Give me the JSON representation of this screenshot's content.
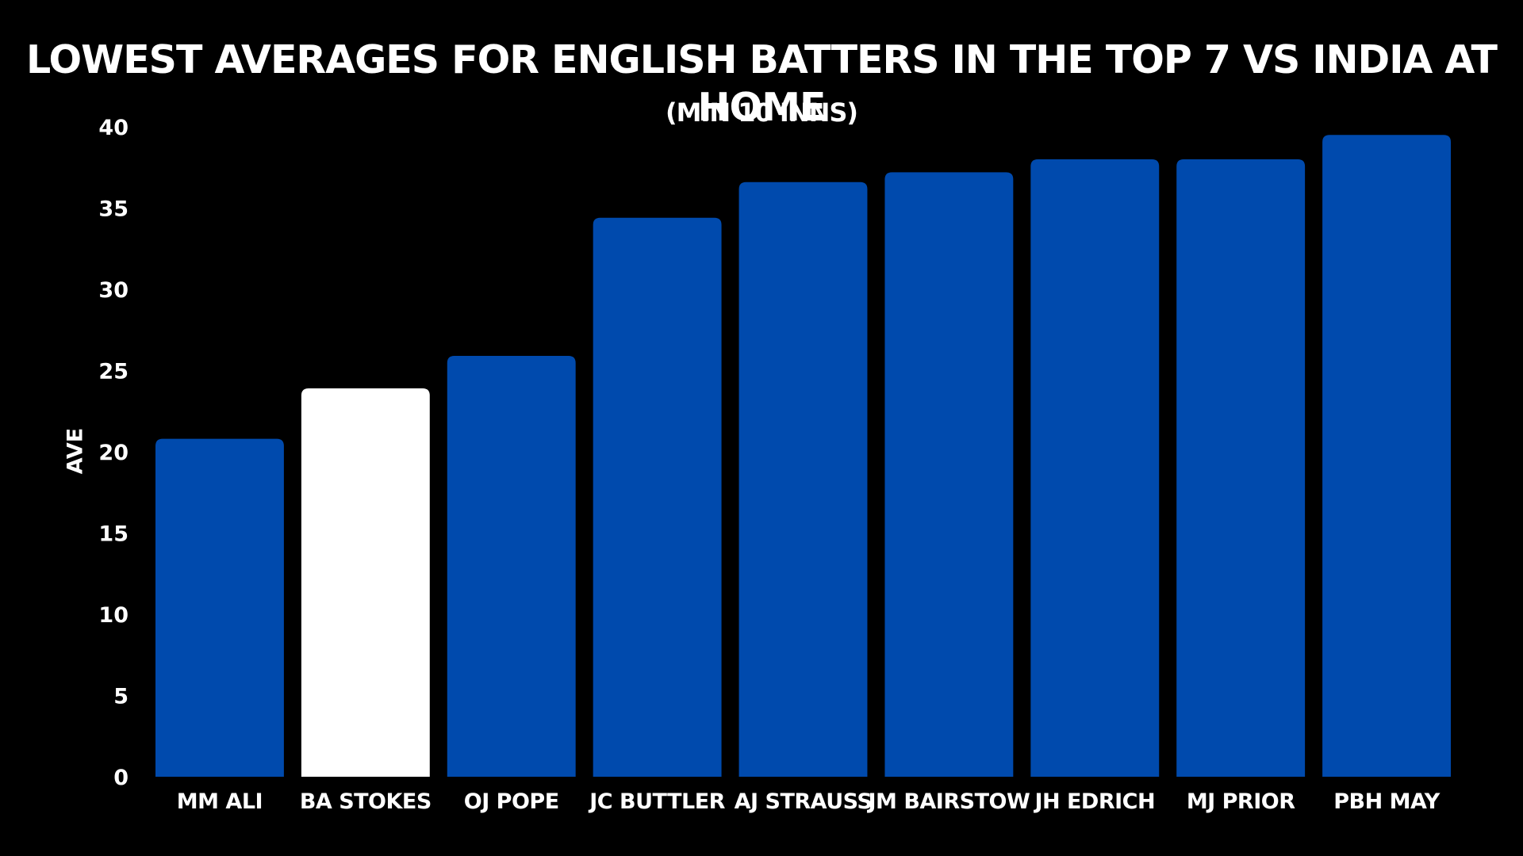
{
  "chart_data": {
    "type": "bar",
    "title": "LOWEST AVERAGES FOR ENGLISH BATTERS IN THE TOP 7 VS INDIA AT HOME",
    "subtitle": "(MIN 10 INNS)",
    "xlabel": "",
    "ylabel": "AVE",
    "ylim": [
      0,
      40
    ],
    "yticks": [
      "0",
      "5",
      "10",
      "15",
      "20",
      "25",
      "30",
      "35",
      "40"
    ],
    "categories": [
      "MM ALI",
      "BA STOKES",
      "OJ POPE",
      "JC BUTTLER",
      "AJ STRAUSS",
      "JM BAIRSTOW",
      "JH EDRICH",
      "MJ PRIOR",
      "PBH MAY"
    ],
    "values": [
      20.8,
      23.9,
      25.9,
      34.4,
      36.6,
      37.2,
      38.0,
      38.0,
      39.5
    ],
    "highlight_category": "BA STOKES",
    "grid": false,
    "legend": "none",
    "colors": {
      "background": "#000000",
      "bar": "#004aad",
      "highlight_bar": "#ffffff",
      "text": "#ffffff"
    }
  }
}
